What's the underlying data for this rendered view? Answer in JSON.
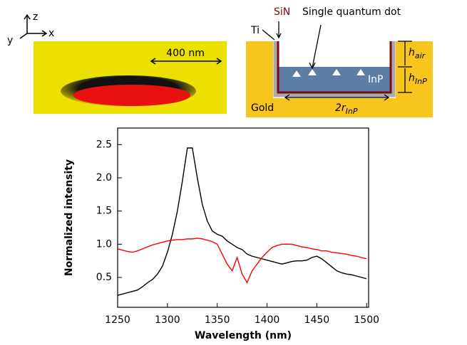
{
  "panels": {
    "axes_icon": {
      "z": "z",
      "y": "y",
      "x": "x"
    },
    "scale_bar": "400 nm",
    "schematic": {
      "sin": "SiN",
      "dot": "Single quantum dot",
      "ti": "Ti",
      "h1": "h",
      "h1_sub": "air",
      "h2": "h",
      "h2_sub": "InP",
      "inp": "InP",
      "gold": "Gold",
      "r": "2r",
      "r_sub": "InP"
    }
  },
  "chart_data": {
    "type": "line",
    "x_label": "Wavelength (nm)",
    "y_label": "Normalized intensity",
    "x": [
      1250,
      1255,
      1260,
      1265,
      1270,
      1275,
      1280,
      1285,
      1290,
      1295,
      1300,
      1305,
      1310,
      1315,
      1320,
      1325,
      1330,
      1335,
      1340,
      1345,
      1350,
      1355,
      1360,
      1365,
      1370,
      1375,
      1380,
      1385,
      1390,
      1395,
      1400,
      1405,
      1410,
      1415,
      1420,
      1425,
      1430,
      1435,
      1440,
      1445,
      1450,
      1455,
      1460,
      1465,
      1470,
      1475,
      1480,
      1485,
      1490,
      1495,
      1500
    ],
    "series": [
      {
        "color": "#000000",
        "values": [
          0.23,
          0.25,
          0.27,
          0.29,
          0.31,
          0.36,
          0.42,
          0.47,
          0.55,
          0.67,
          0.88,
          1.15,
          1.5,
          1.95,
          2.45,
          2.45,
          2.0,
          1.6,
          1.35,
          1.2,
          1.15,
          1.12,
          1.05,
          1.0,
          0.95,
          0.92,
          0.85,
          0.82,
          0.8,
          0.78,
          0.76,
          0.74,
          0.72,
          0.7,
          0.72,
          0.74,
          0.75,
          0.75,
          0.76,
          0.8,
          0.82,
          0.78,
          0.72,
          0.66,
          0.6,
          0.57,
          0.55,
          0.54,
          0.52,
          0.5,
          0.48
        ]
      },
      {
        "color": "#ff0000",
        "values": [
          0.93,
          0.91,
          0.89,
          0.88,
          0.9,
          0.93,
          0.96,
          0.99,
          1.01,
          1.03,
          1.05,
          1.06,
          1.07,
          1.07,
          1.08,
          1.08,
          1.09,
          1.08,
          1.06,
          1.04,
          1.0,
          0.85,
          0.7,
          0.6,
          0.8,
          0.55,
          0.42,
          0.6,
          0.7,
          0.8,
          0.88,
          0.95,
          0.98,
          1.0,
          1.0,
          1.0,
          0.98,
          0.96,
          0.95,
          0.93,
          0.92,
          0.9,
          0.9,
          0.88,
          0.87,
          0.86,
          0.85,
          0.83,
          0.82,
          0.8,
          0.78
        ]
      }
    ],
    "xlim": [
      1250,
      1502
    ],
    "xticks": [
      1250,
      1300,
      1350,
      1400,
      1450,
      1500
    ],
    "ylim": [
      0.05,
      2.75
    ],
    "yticks": [
      0.5,
      {
        "value": 1,
        "label": "1.0"
      },
      1.5,
      {
        "value": 2,
        "label": "2.0"
      },
      2.5
    ]
  }
}
